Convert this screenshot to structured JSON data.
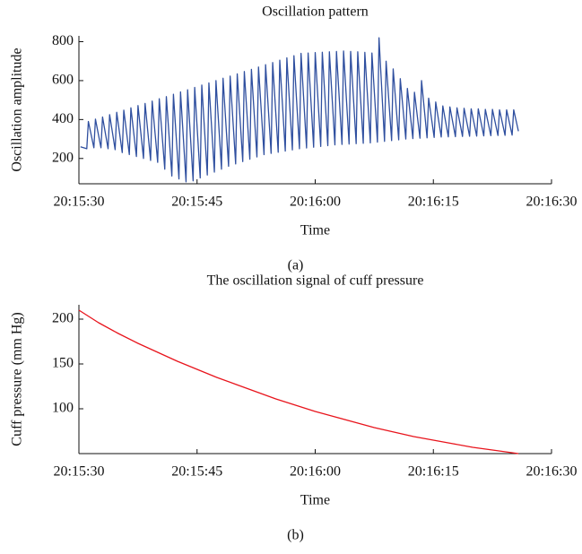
{
  "chart_data": [
    {
      "type": "line",
      "title": "Oscillation pattern",
      "xlabel": "Time",
      "ylabel": "Oscillation amplitude",
      "caption": "(a)",
      "xlim": [
        0,
        60
      ],
      "ylim": [
        70,
        830
      ],
      "xticks": [
        {
          "value": 0,
          "label": "20:15:30"
        },
        {
          "value": 15,
          "label": "20:15:45"
        },
        {
          "value": 30,
          "label": "20:16:00"
        },
        {
          "value": 45,
          "label": "20:16:15"
        },
        {
          "value": 60,
          "label": "20:16:30"
        }
      ],
      "yticks": [
        200,
        400,
        600,
        800
      ],
      "x": [
        0.2,
        1.0,
        1.2,
        1.9,
        2.1,
        2.8,
        3.0,
        3.7,
        3.9,
        4.6,
        4.8,
        5.5,
        5.7,
        6.4,
        6.6,
        7.3,
        7.5,
        8.2,
        8.4,
        9.1,
        9.3,
        10.0,
        10.2,
        10.9,
        11.1,
        11.8,
        12.0,
        12.7,
        12.9,
        13.6,
        13.8,
        14.5,
        14.7,
        15.4,
        15.6,
        16.3,
        16.5,
        17.2,
        17.4,
        18.1,
        18.3,
        19.0,
        19.2,
        19.9,
        20.1,
        20.8,
        21.0,
        21.7,
        21.9,
        22.6,
        22.8,
        23.5,
        23.7,
        24.4,
        24.6,
        25.3,
        25.5,
        26.2,
        26.4,
        27.1,
        27.3,
        28.0,
        28.2,
        28.9,
        29.1,
        29.8,
        30.0,
        30.7,
        30.9,
        31.6,
        31.8,
        32.5,
        32.7,
        33.4,
        33.6,
        34.3,
        34.5,
        35.2,
        35.4,
        36.1,
        36.3,
        37.0,
        37.2,
        37.9,
        38.1,
        38.8,
        39.0,
        39.7,
        39.9,
        40.6,
        40.8,
        41.5,
        41.7,
        42.4,
        42.6,
        43.3,
        43.5,
        44.2,
        44.4,
        45.1,
        45.3,
        46.0,
        46.2,
        46.9,
        47.1,
        47.8,
        48.0,
        48.7,
        48.9,
        49.6,
        49.8,
        50.5,
        50.7,
        51.4,
        51.6,
        52.3,
        52.5,
        53.2,
        53.4,
        54.1,
        54.3,
        55.0,
        55.2,
        55.8
      ],
      "series": [
        {
          "name": "Oscillation amplitude",
          "color": "#2f4f9f",
          "values": [
            260,
            250,
            390,
            255,
            402,
            255,
            413,
            250,
            425,
            245,
            437,
            230,
            448,
            220,
            460,
            210,
            472,
            200,
            483,
            190,
            495,
            180,
            507,
            145,
            518,
            110,
            530,
            95,
            542,
            80,
            553,
            85,
            565,
            100,
            577,
            115,
            588,
            130,
            600,
            145,
            612,
            160,
            623,
            172,
            635,
            184,
            647,
            196,
            658,
            208,
            670,
            220,
            682,
            226,
            693,
            232,
            705,
            238,
            717,
            244,
            728,
            250,
            740,
            254,
            742,
            258,
            744,
            262,
            746,
            266,
            748,
            270,
            750,
            272,
            752,
            274,
            750,
            276,
            748,
            278,
            745,
            280,
            742,
            284,
            820,
            288,
            700,
            292,
            660,
            296,
            610,
            300,
            560,
            302,
            540,
            304,
            600,
            306,
            510,
            308,
            490,
            310,
            470,
            311,
            465,
            312,
            460,
            313,
            458,
            314,
            455,
            315,
            455,
            316,
            452,
            317,
            452,
            318,
            450,
            319,
            450,
            320,
            450,
            340
          ]
        }
      ]
    },
    {
      "type": "line",
      "title": "The oscillation signal of cuff pressure",
      "xlabel": "Time",
      "ylabel": "Cuff pressure (mm Hg)",
      "caption": "(b)",
      "xlim": [
        0,
        60
      ],
      "ylim": [
        50,
        216
      ],
      "xticks": [
        {
          "value": 0,
          "label": "20:15:30"
        },
        {
          "value": 15,
          "label": "20:15:45"
        },
        {
          "value": 30,
          "label": "20:16:00"
        },
        {
          "value": 45,
          "label": "20:16:15"
        },
        {
          "value": 60,
          "label": "20:16:30"
        }
      ],
      "yticks": [
        100,
        150,
        200
      ],
      "x": [
        0,
        2.5,
        5,
        7.5,
        10,
        12.5,
        15,
        17.5,
        20,
        22.5,
        25,
        27.5,
        30,
        32.5,
        35,
        37.5,
        40,
        42.5,
        45,
        47.5,
        50,
        52.5,
        55.8
      ],
      "series": [
        {
          "name": "Cuff pressure",
          "color": "#e8141c",
          "values": [
            210,
            196,
            184,
            173,
            163,
            153,
            144,
            135,
            127,
            119,
            111,
            104,
            97,
            91,
            85,
            79,
            74,
            69,
            65,
            61,
            57,
            54,
            50
          ]
        }
      ]
    }
  ]
}
